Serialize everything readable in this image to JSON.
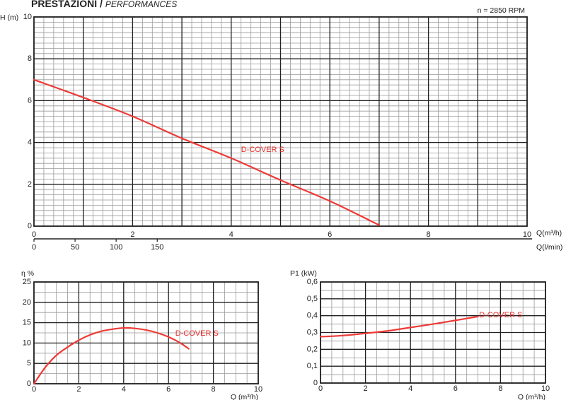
{
  "header": {
    "title": "PRESTAZIONI /",
    "subtitle": "PERFORMANCES",
    "speed": "n = 2850 RPM"
  },
  "colors": {
    "curve": "#ee3a36",
    "grid_major": "#222222",
    "grid_minor": "#9a9a9a"
  },
  "chart_data": [
    {
      "type": "line",
      "ylabel": "H (m)",
      "xlabel": "Q(m³/h)",
      "xlabel2": "Q(l/min)",
      "xlim": [
        0,
        10
      ],
      "ylim": [
        0,
        10
      ],
      "xticks": [
        "0",
        "2",
        "4",
        "6",
        "8",
        "10"
      ],
      "yticks": [
        "0",
        "2",
        "4",
        "6",
        "8",
        "10"
      ],
      "x2ticks": [
        "0",
        "50",
        "100",
        "150"
      ],
      "x2values": [
        0,
        50,
        100,
        150
      ],
      "grid": true,
      "series": [
        {
          "name": "D-COVER S",
          "x": [
            0,
            1,
            2,
            3,
            4,
            5,
            6,
            7
          ],
          "y": [
            7.0,
            6.15,
            5.25,
            4.2,
            3.25,
            2.2,
            1.2,
            0.05
          ]
        }
      ]
    },
    {
      "type": "line",
      "ylabel": "η %",
      "xlabel": "Q (m³/h)",
      "xlim": [
        0,
        10
      ],
      "ylim": [
        0,
        25
      ],
      "xticks": [
        "0",
        "2",
        "4",
        "6",
        "8",
        "10"
      ],
      "yticks": [
        "0",
        "5",
        "10",
        "15",
        "20",
        "25"
      ],
      "grid": true,
      "series": [
        {
          "name": "D-COVER S",
          "x": [
            0,
            0.5,
            1,
            1.5,
            2,
            2.5,
            3,
            3.5,
            4,
            4.5,
            5,
            5.5,
            6,
            6.5,
            6.9
          ],
          "y": [
            0,
            4,
            7,
            9,
            10.7,
            12,
            12.9,
            13.4,
            13.7,
            13.6,
            13.2,
            12.5,
            11.5,
            10.1,
            8.6
          ]
        }
      ]
    },
    {
      "type": "line",
      "ylabel": "P1 (kW)",
      "xlabel": "Q (m³/h)",
      "xlim": [
        0,
        10
      ],
      "ylim": [
        0,
        0.6
      ],
      "xticks": [
        "0",
        "2",
        "4",
        "6",
        "8",
        "10"
      ],
      "yticks": [
        "0",
        "0,1",
        "0,2",
        "0,3",
        "0,4",
        "0,5",
        "0,6"
      ],
      "grid": true,
      "series": [
        {
          "name": "D-COVER S",
          "x": [
            0,
            1,
            2,
            3,
            4,
            5,
            6,
            7
          ],
          "y": [
            0.275,
            0.282,
            0.295,
            0.31,
            0.33,
            0.35,
            0.372,
            0.395
          ]
        }
      ]
    }
  ]
}
